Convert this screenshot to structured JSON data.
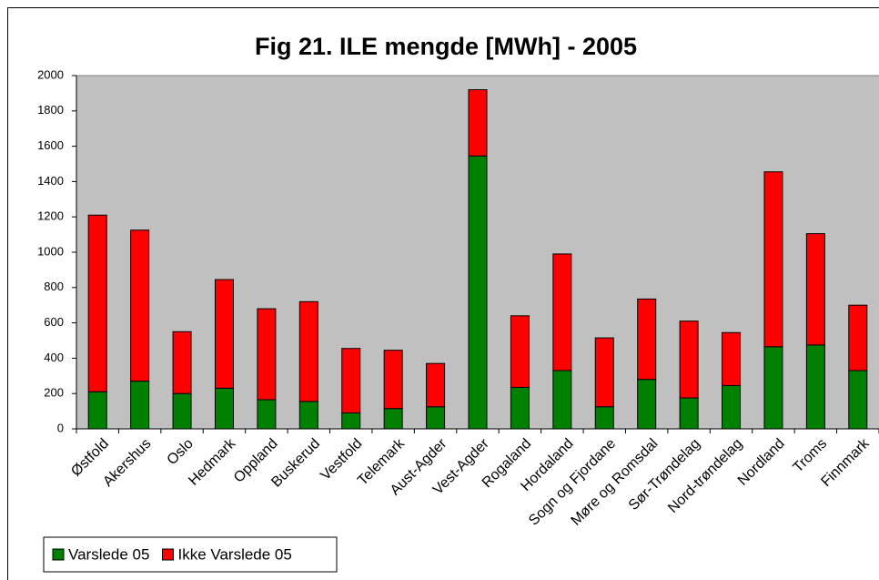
{
  "chart_data": {
    "type": "stacked_bar",
    "title": "Fig 21. ILE mengde [MWh] - 2005",
    "categories": [
      "Østfold",
      "Akershus",
      "Oslo",
      "Hedmark",
      "Oppland",
      "Buskerud",
      "Vestfold",
      "Telemark",
      "Aust-Agder",
      "Vest-Agder",
      "Rogaland",
      "Hordaland",
      "Sogn og Fjordane",
      "Møre og Romsdal",
      "Sør-Trøndelag",
      "Nord-trøndelag",
      "Nordland",
      "Troms",
      "Finnmark"
    ],
    "series": [
      {
        "name": "Varslede 05",
        "color": "#008000",
        "values": [
          210,
          270,
          200,
          230,
          165,
          155,
          90,
          115,
          125,
          1545,
          235,
          330,
          125,
          280,
          175,
          245,
          465,
          475,
          330
        ]
      },
      {
        "name": "Ikke Varslede 05",
        "color": "#ff0000",
        "values": [
          1000,
          855,
          350,
          615,
          515,
          565,
          365,
          330,
          245,
          375,
          405,
          660,
          390,
          455,
          435,
          300,
          990,
          630,
          370
        ]
      }
    ],
    "ylim": [
      0,
      2000
    ],
    "yticks": [
      0,
      200,
      400,
      600,
      800,
      1000,
      1200,
      1400,
      1600,
      1800,
      2000
    ],
    "legend": "bottom-left",
    "plot_background": "#c0c0c0"
  }
}
